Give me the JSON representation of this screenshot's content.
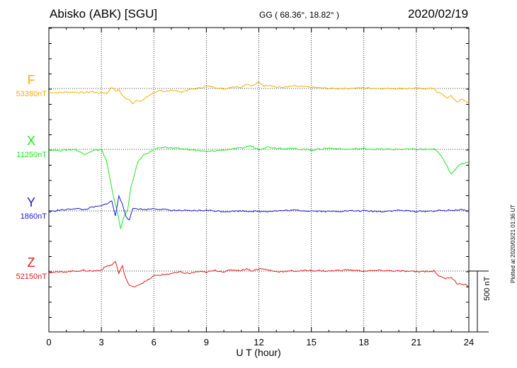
{
  "header": {
    "station": "Abisko (ABK)  [SGU]",
    "coords": "GG ( 68.36°,  18.82° )",
    "date": "2020/02/19"
  },
  "footer": {
    "plotted": "Plotted at 2020/03/21 01:36 UT"
  },
  "colors": {
    "F": "#f5ae05",
    "X": "#1ee61e",
    "Y": "#1a1ad6",
    "Z": "#e81a1a"
  },
  "chart_data": {
    "type": "line",
    "xlabel": "U T (hour)",
    "xlim": [
      0,
      24
    ],
    "xticks": [
      "0",
      "3",
      "6",
      "9",
      "12",
      "15",
      "18",
      "21",
      "24"
    ],
    "scale_bar": "500 nT",
    "grid": true,
    "series": [
      {
        "name": "F",
        "baseline_label": "53380nT",
        "unit": "nT",
        "x": [
          0,
          0.5,
          1,
          1.5,
          2,
          2.5,
          2.8,
          3,
          3.3,
          3.6,
          3.8,
          4,
          4.2,
          4.4,
          4.6,
          4.8,
          5,
          5.2,
          5.5,
          5.8,
          6,
          6.3,
          6.6,
          7,
          7.5,
          8,
          8.5,
          9,
          9.5,
          10,
          10.5,
          11,
          11.3,
          11.6,
          12,
          12.3,
          12.6,
          13,
          13.5,
          14,
          15,
          16,
          17,
          18,
          19,
          20,
          21,
          22,
          22.2,
          22.5,
          22.8,
          23,
          23.3,
          23.6,
          24
        ],
        "values": [
          -30,
          -35,
          -30,
          -30,
          -35,
          -25,
          -40,
          -30,
          -40,
          10,
          -20,
          -10,
          -60,
          -80,
          -90,
          -120,
          -100,
          -110,
          -80,
          -50,
          -30,
          -20,
          -30,
          -10,
          -30,
          -10,
          0,
          20,
          10,
          -5,
          15,
          10,
          40,
          20,
          50,
          20,
          30,
          10,
          10,
          20,
          10,
          0,
          0,
          5,
          0,
          0,
          0,
          0,
          -30,
          -50,
          -80,
          -60,
          -110,
          -90,
          -120
        ]
      },
      {
        "name": "X",
        "baseline_label": "11250nT",
        "unit": "nT",
        "x": [
          0,
          0.5,
          1,
          1.5,
          2,
          2.5,
          2.8,
          3,
          3.3,
          3.5,
          3.7,
          3.9,
          4.1,
          4.3,
          4.5,
          4.7,
          4.9,
          5.1,
          5.4,
          5.8,
          6,
          6.5,
          7,
          8,
          9,
          10,
          11,
          11.5,
          12,
          12.5,
          13,
          14,
          15,
          16,
          17,
          18,
          19,
          20,
          21,
          22,
          22.3,
          22.6,
          23,
          23.3,
          23.6,
          24
        ],
        "values": [
          0,
          -10,
          -5,
          0,
          -40,
          -10,
          -5,
          0,
          -100,
          -250,
          -400,
          -500,
          -650,
          -550,
          -500,
          -300,
          -200,
          -100,
          -50,
          -20,
          0,
          20,
          10,
          0,
          -20,
          -5,
          10,
          30,
          0,
          20,
          10,
          5,
          -5,
          10,
          0,
          5,
          0,
          0,
          0,
          0,
          -30,
          -100,
          -200,
          -150,
          -120,
          -100
        ]
      },
      {
        "name": "Y",
        "baseline_label": "1860nT",
        "unit": "nT",
        "x": [
          0,
          0.5,
          1,
          1.5,
          2,
          2.5,
          3,
          3.3,
          3.6,
          3.8,
          4,
          4.2,
          4.4,
          4.6,
          4.8,
          5,
          5.5,
          6,
          7,
          8,
          9,
          10,
          11,
          12,
          13,
          14,
          15,
          16,
          17,
          18,
          19,
          20,
          21,
          22,
          23,
          23.5,
          24
        ],
        "values": [
          -10,
          5,
          10,
          20,
          10,
          30,
          40,
          60,
          80,
          -40,
          120,
          60,
          -40,
          -80,
          20,
          20,
          10,
          20,
          5,
          0,
          5,
          -5,
          0,
          -5,
          0,
          5,
          0,
          -5,
          0,
          0,
          -5,
          5,
          -5,
          0,
          5,
          10,
          0
        ]
      },
      {
        "name": "Z",
        "baseline_label": "52150nT",
        "unit": "nT",
        "x": [
          0,
          0.5,
          1,
          1.5,
          2,
          2.5,
          3,
          3.3,
          3.6,
          3.8,
          4,
          4.2,
          4.4,
          4.6,
          4.8,
          5,
          5.3,
          5.6,
          6,
          6.5,
          7,
          7.5,
          8,
          8.5,
          9,
          9.5,
          10,
          10.5,
          11,
          11.3,
          11.6,
          12,
          12.5,
          13,
          14,
          15,
          16,
          17,
          18,
          19,
          20,
          21,
          22,
          22.3,
          22.6,
          23,
          23.3,
          23.6,
          24
        ],
        "values": [
          -10,
          -10,
          -5,
          0,
          5,
          0,
          10,
          40,
          50,
          80,
          -20,
          40,
          -60,
          -120,
          -130,
          -120,
          -100,
          -80,
          -40,
          -30,
          -20,
          -10,
          -20,
          -5,
          -10,
          5,
          -5,
          10,
          5,
          20,
          0,
          20,
          10,
          -5,
          0,
          5,
          0,
          10,
          0,
          5,
          0,
          -5,
          0,
          -40,
          -60,
          -50,
          -100,
          -110,
          -120
        ]
      }
    ]
  }
}
